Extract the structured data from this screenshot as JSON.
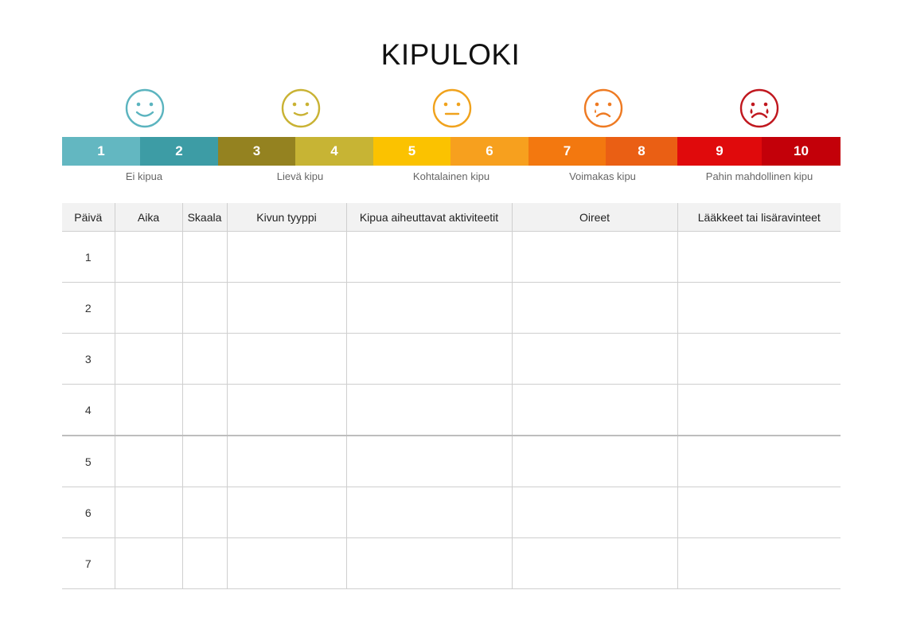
{
  "title": "KIPULOKI",
  "faces": [
    {
      "icon": "happy-face-icon",
      "color": "#5bb4bf",
      "mouth": "smile"
    },
    {
      "icon": "slight-smile-face-icon",
      "color": "#c9b233",
      "mouth": "slight"
    },
    {
      "icon": "neutral-face-icon",
      "color": "#f0a21c",
      "mouth": "flat"
    },
    {
      "icon": "sad-face-icon",
      "color": "#ee7a22",
      "mouth": "frown"
    },
    {
      "icon": "crying-face-icon",
      "color": "#c0171e",
      "mouth": "cry"
    }
  ],
  "scale": [
    {
      "value": "1",
      "color": "#63b7c1"
    },
    {
      "value": "2",
      "color": "#3d9ca5"
    },
    {
      "value": "3",
      "color": "#948220"
    },
    {
      "value": "4",
      "color": "#c7b434"
    },
    {
      "value": "5",
      "color": "#fbc200"
    },
    {
      "value": "6",
      "color": "#f7a01e"
    },
    {
      "value": "7",
      "color": "#f3780f"
    },
    {
      "value": "8",
      "color": "#ea5f14"
    },
    {
      "value": "9",
      "color": "#e00a0c"
    },
    {
      "value": "10",
      "color": "#c30009"
    }
  ],
  "scale_labels": [
    "Ei kipua",
    "Lievä kipu",
    "Kohtalainen kipu",
    "Voimakas kipu",
    "Pahin mahdollinen kipu"
  ],
  "table": {
    "headers": [
      "Päivä",
      "Aika",
      "Skaala",
      "Kivun tyyppi",
      "Kipua aiheuttavat aktiviteetit",
      "Oireet",
      "Lääkkeet tai lisäravinteet"
    ],
    "days": [
      "1",
      "2",
      "3",
      "4",
      "5",
      "6",
      "7"
    ]
  }
}
